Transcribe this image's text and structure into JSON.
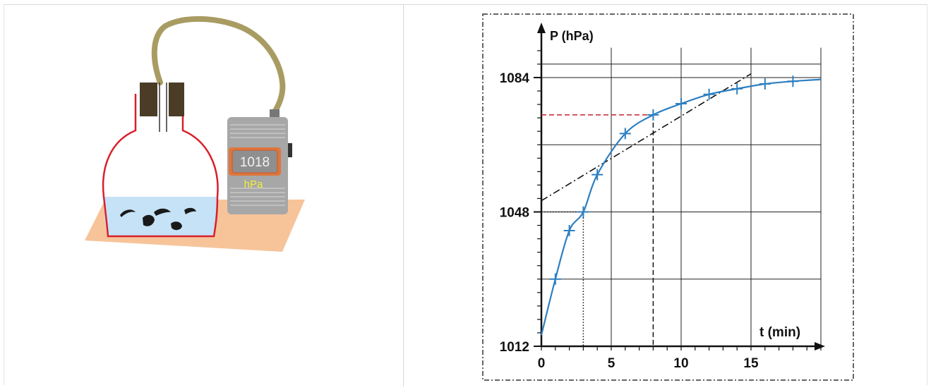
{
  "apparatus": {
    "meter_reading": "1018",
    "meter_unit": "hPa"
  },
  "colors": {
    "flask_outline": "#d9202b",
    "liquid": "#c6e2f6",
    "table": "#f7c49a",
    "tube": "#a99c62",
    "stopper": "#4a3c26",
    "meter_body": "#a7a7a7",
    "meter_display": "#e0763a",
    "meter_unit_text": "#f0ef38",
    "curve": "#2d7fc1",
    "horizontal_guide": "#c8202b"
  },
  "chart_data": {
    "type": "line",
    "ylabel": "P (hPa)",
    "xlabel": "t (min)",
    "x_ticks": [
      "0",
      "5",
      "10",
      "15"
    ],
    "y_ticks": [
      "1012",
      "1048",
      "1084"
    ],
    "xlim": [
      0,
      20
    ],
    "ylim": [
      1012,
      1092
    ],
    "grid": true,
    "series": [
      {
        "x": [
          0,
          1,
          2,
          3,
          4,
          6,
          8,
          10,
          12,
          14,
          16,
          18,
          20
        ],
        "values": [
          1015,
          1030,
          1043,
          1048,
          1058,
          1069,
          1074,
          1077,
          1079.5,
          1081,
          1082.3,
          1083,
          1083.5
        ]
      }
    ],
    "tangent_line": {
      "from": [
        0,
        1051
      ],
      "to": [
        15,
        1085
      ]
    },
    "markers": [
      {
        "x": 3,
        "y": 1048,
        "style": "dotted"
      },
      {
        "x": 8,
        "y": 1074,
        "style": "dashed"
      }
    ]
  }
}
